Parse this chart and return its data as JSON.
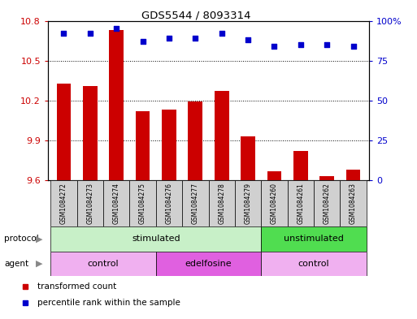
{
  "title": "GDS5544 / 8093314",
  "samples": [
    "GSM1084272",
    "GSM1084273",
    "GSM1084274",
    "GSM1084275",
    "GSM1084276",
    "GSM1084277",
    "GSM1084278",
    "GSM1084279",
    "GSM1084260",
    "GSM1084261",
    "GSM1084262",
    "GSM1084263"
  ],
  "bar_values": [
    10.33,
    10.31,
    10.73,
    10.12,
    10.13,
    10.19,
    10.27,
    9.93,
    9.67,
    9.82,
    9.63,
    9.68
  ],
  "dot_values": [
    92,
    92,
    95,
    87,
    89,
    89,
    92,
    88,
    84,
    85,
    85,
    84
  ],
  "bar_color": "#cc0000",
  "dot_color": "#0000cc",
  "ylim_left": [
    9.6,
    10.8
  ],
  "ylim_right": [
    0,
    100
  ],
  "yticks_left": [
    9.6,
    9.9,
    10.2,
    10.5,
    10.8
  ],
  "yticks_right": [
    0,
    25,
    50,
    75,
    100
  ],
  "ytick_labels_left": [
    "9.6",
    "9.9",
    "10.2",
    "10.5",
    "10.8"
  ],
  "ytick_labels_right": [
    "0",
    "25",
    "50",
    "75",
    "100%"
  ],
  "protocol_groups": [
    {
      "label": "stimulated",
      "start": 0,
      "end": 8,
      "color": "#c8f0c8"
    },
    {
      "label": "unstimulated",
      "start": 8,
      "end": 12,
      "color": "#50dd50"
    }
  ],
  "agent_groups": [
    {
      "label": "control",
      "start": 0,
      "end": 4,
      "color": "#f0b0f0"
    },
    {
      "label": "edelfosine",
      "start": 4,
      "end": 8,
      "color": "#e060e0"
    },
    {
      "label": "control",
      "start": 8,
      "end": 12,
      "color": "#f0b0f0"
    }
  ],
  "legend_items": [
    {
      "label": "transformed count",
      "color": "#cc0000"
    },
    {
      "label": "percentile rank within the sample",
      "color": "#0000cc"
    }
  ],
  "sample_box_color": "#d0d0d0",
  "grid_color": "black",
  "grid_style": ":"
}
